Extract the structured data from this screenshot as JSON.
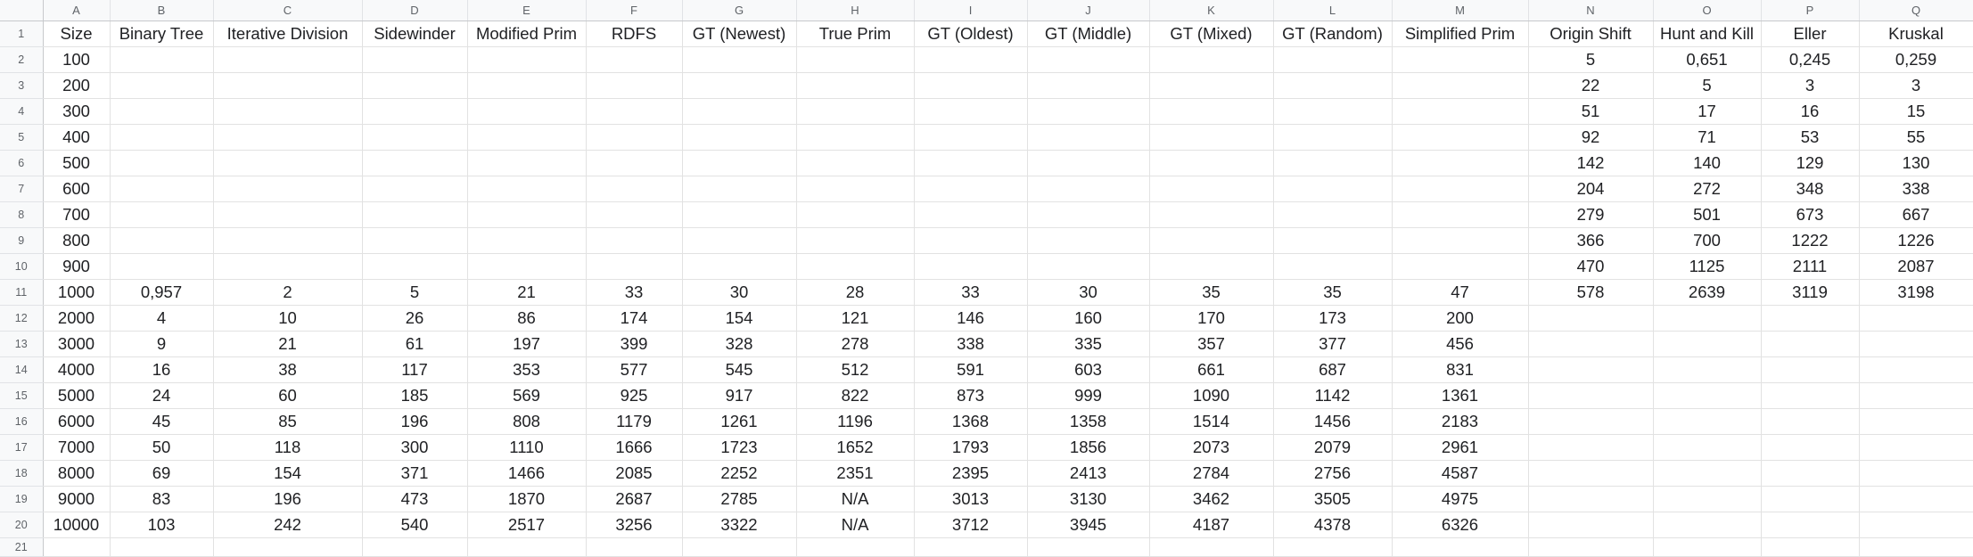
{
  "column_letters": [
    "A",
    "B",
    "C",
    "D",
    "E",
    "F",
    "G",
    "H",
    "I",
    "J",
    "K",
    "L",
    "M",
    "N",
    "O",
    "P",
    "Q"
  ],
  "rows": [
    [
      "Size",
      "Binary Tree",
      "Iterative Division",
      "Sidewinder",
      "Modified Prim",
      "RDFS",
      "GT (Newest)",
      "True Prim",
      "GT (Oldest)",
      "GT (Middle)",
      "GT (Mixed)",
      "GT (Random)",
      "Simplified Prim",
      "Origin Shift",
      "Hunt and Kill",
      "Eller",
      "Kruskal"
    ],
    [
      "100",
      "",
      "",
      "",
      "",
      "",
      "",
      "",
      "",
      "",
      "",
      "",
      "",
      "5",
      "0,651",
      "0,245",
      "0,259"
    ],
    [
      "200",
      "",
      "",
      "",
      "",
      "",
      "",
      "",
      "",
      "",
      "",
      "",
      "",
      "22",
      "5",
      "3",
      "3"
    ],
    [
      "300",
      "",
      "",
      "",
      "",
      "",
      "",
      "",
      "",
      "",
      "",
      "",
      "",
      "51",
      "17",
      "16",
      "15"
    ],
    [
      "400",
      "",
      "",
      "",
      "",
      "",
      "",
      "",
      "",
      "",
      "",
      "",
      "",
      "92",
      "71",
      "53",
      "55"
    ],
    [
      "500",
      "",
      "",
      "",
      "",
      "",
      "",
      "",
      "",
      "",
      "",
      "",
      "",
      "142",
      "140",
      "129",
      "130"
    ],
    [
      "600",
      "",
      "",
      "",
      "",
      "",
      "",
      "",
      "",
      "",
      "",
      "",
      "",
      "204",
      "272",
      "348",
      "338"
    ],
    [
      "700",
      "",
      "",
      "",
      "",
      "",
      "",
      "",
      "",
      "",
      "",
      "",
      "",
      "279",
      "501",
      "673",
      "667"
    ],
    [
      "800",
      "",
      "",
      "",
      "",
      "",
      "",
      "",
      "",
      "",
      "",
      "",
      "",
      "366",
      "700",
      "1222",
      "1226"
    ],
    [
      "900",
      "",
      "",
      "",
      "",
      "",
      "",
      "",
      "",
      "",
      "",
      "",
      "",
      "470",
      "1125",
      "2111",
      "2087"
    ],
    [
      "1000",
      "0,957",
      "2",
      "5",
      "21",
      "33",
      "30",
      "28",
      "33",
      "30",
      "35",
      "35",
      "47",
      "578",
      "2639",
      "3119",
      "3198"
    ],
    [
      "2000",
      "4",
      "10",
      "26",
      "86",
      "174",
      "154",
      "121",
      "146",
      "160",
      "170",
      "173",
      "200",
      "",
      "",
      "",
      ""
    ],
    [
      "3000",
      "9",
      "21",
      "61",
      "197",
      "399",
      "328",
      "278",
      "338",
      "335",
      "357",
      "377",
      "456",
      "",
      "",
      "",
      ""
    ],
    [
      "4000",
      "16",
      "38",
      "117",
      "353",
      "577",
      "545",
      "512",
      "591",
      "603",
      "661",
      "687",
      "831",
      "",
      "",
      "",
      ""
    ],
    [
      "5000",
      "24",
      "60",
      "185",
      "569",
      "925",
      "917",
      "822",
      "873",
      "999",
      "1090",
      "1142",
      "1361",
      "",
      "",
      "",
      ""
    ],
    [
      "6000",
      "45",
      "85",
      "196",
      "808",
      "1179",
      "1261",
      "1196",
      "1368",
      "1358",
      "1514",
      "1456",
      "2183",
      "",
      "",
      "",
      ""
    ],
    [
      "7000",
      "50",
      "118",
      "300",
      "1110",
      "1666",
      "1723",
      "1652",
      "1793",
      "1856",
      "2073",
      "2079",
      "2961",
      "",
      "",
      "",
      ""
    ],
    [
      "8000",
      "69",
      "154",
      "371",
      "1466",
      "2085",
      "2252",
      "2351",
      "2395",
      "2413",
      "2784",
      "2756",
      "4587",
      "",
      "",
      "",
      ""
    ],
    [
      "9000",
      "83",
      "196",
      "473",
      "1870",
      "2687",
      "2785",
      "N/A",
      "3013",
      "3130",
      "3462",
      "3505",
      "4975",
      "",
      "",
      "",
      ""
    ],
    [
      "10000",
      "103",
      "242",
      "540",
      "2517",
      "3256",
      "3322",
      "N/A",
      "3712",
      "3945",
      "4187",
      "4378",
      "6326",
      "",
      "",
      "",
      ""
    ],
    [
      "",
      "",
      "",
      "",
      "",
      "",
      "",
      "",
      "",
      "",
      "",
      "",
      "",
      "",
      "",
      "",
      ""
    ]
  ]
}
